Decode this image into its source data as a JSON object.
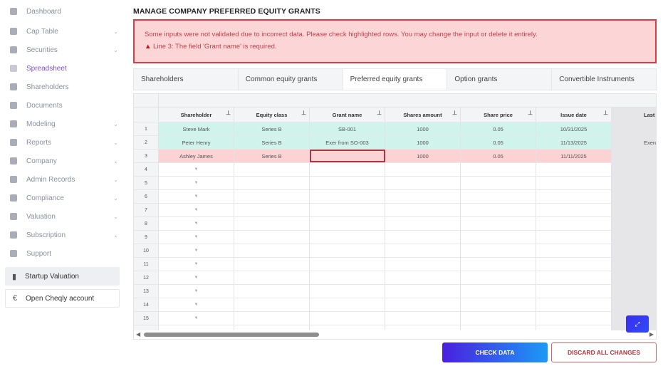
{
  "sidebar": {
    "items": [
      {
        "label": "Dashboard",
        "icon": "dashboard-icon",
        "chevron": false
      },
      {
        "label": "Cap Table",
        "icon": "pie-chart-icon",
        "chevron": true
      },
      {
        "label": "Securities",
        "icon": "clipboard-icon",
        "chevron": true
      },
      {
        "label": "Spreadsheet",
        "icon": "spreadsheet-icon",
        "chevron": false,
        "active": true
      },
      {
        "label": "Shareholders",
        "icon": "user-icon",
        "chevron": false
      },
      {
        "label": "Documents",
        "icon": "folder-icon",
        "chevron": false
      },
      {
        "label": "Modeling",
        "icon": "lightbulb-icon",
        "chevron": true
      },
      {
        "label": "Reports",
        "icon": "report-icon",
        "chevron": true
      },
      {
        "label": "Company",
        "icon": "building-icon",
        "chevron": true
      },
      {
        "label": "Admin Records",
        "icon": "records-icon",
        "chevron": true
      },
      {
        "label": "Compliance",
        "icon": "shield-icon",
        "chevron": true
      },
      {
        "label": "Valuation",
        "icon": "chart-icon",
        "chevron": true
      },
      {
        "label": "Subscription",
        "icon": "dollar-icon",
        "chevron": true
      },
      {
        "label": "Support",
        "icon": "chat-icon",
        "chevron": false
      }
    ],
    "startup_valuation": "Startup Valuation",
    "open_account": "Open Cheqly account"
  },
  "page_title": "MANAGE COMPANY PREFERRED EQUITY GRANTS",
  "alert": {
    "message": "Some inputs were not validated due to incorrect data. Please check highlighted rows. You may change the input or delete it entirely.",
    "error": "Line 3: The field 'Grant name' is required.",
    "color": "#e03a44"
  },
  "tabs": [
    {
      "label": "Shareholders"
    },
    {
      "label": "Common equity grants"
    },
    {
      "label": "Preferred equity grants",
      "active": true
    },
    {
      "label": "Option grants"
    },
    {
      "label": "Convertible Instruments"
    }
  ],
  "grid": {
    "columns": [
      "Shareholder",
      "Equity class",
      "Grant name",
      "Shares amount",
      "Share price",
      "Issue date",
      "Last t"
    ],
    "rows": [
      {
        "n": "1",
        "status": "ok",
        "cells": [
          "Steve Mark",
          "Series B",
          "SB-001",
          "1000",
          "0.05",
          "10/31/2025",
          ""
        ]
      },
      {
        "n": "2",
        "status": "ok",
        "cells": [
          "Peter Henry",
          "Series B",
          "Exer from SO-003",
          "1000",
          "0.05",
          "11/13/2025",
          "Exerc"
        ]
      },
      {
        "n": "3",
        "status": "bad",
        "cells": [
          "Ashley James",
          "Series B",
          "",
          "1000",
          "0.05",
          "11/11/2025",
          ""
        ]
      },
      {
        "n": "4"
      },
      {
        "n": "5"
      },
      {
        "n": "6"
      },
      {
        "n": "7"
      },
      {
        "n": "8"
      },
      {
        "n": "9"
      },
      {
        "n": "10"
      },
      {
        "n": "11"
      },
      {
        "n": "12"
      },
      {
        "n": "13"
      },
      {
        "n": "14"
      },
      {
        "n": "15"
      }
    ]
  },
  "buttons": {
    "check": "CHECK DATA",
    "discard": "DISCARD ALL CHANGES"
  }
}
